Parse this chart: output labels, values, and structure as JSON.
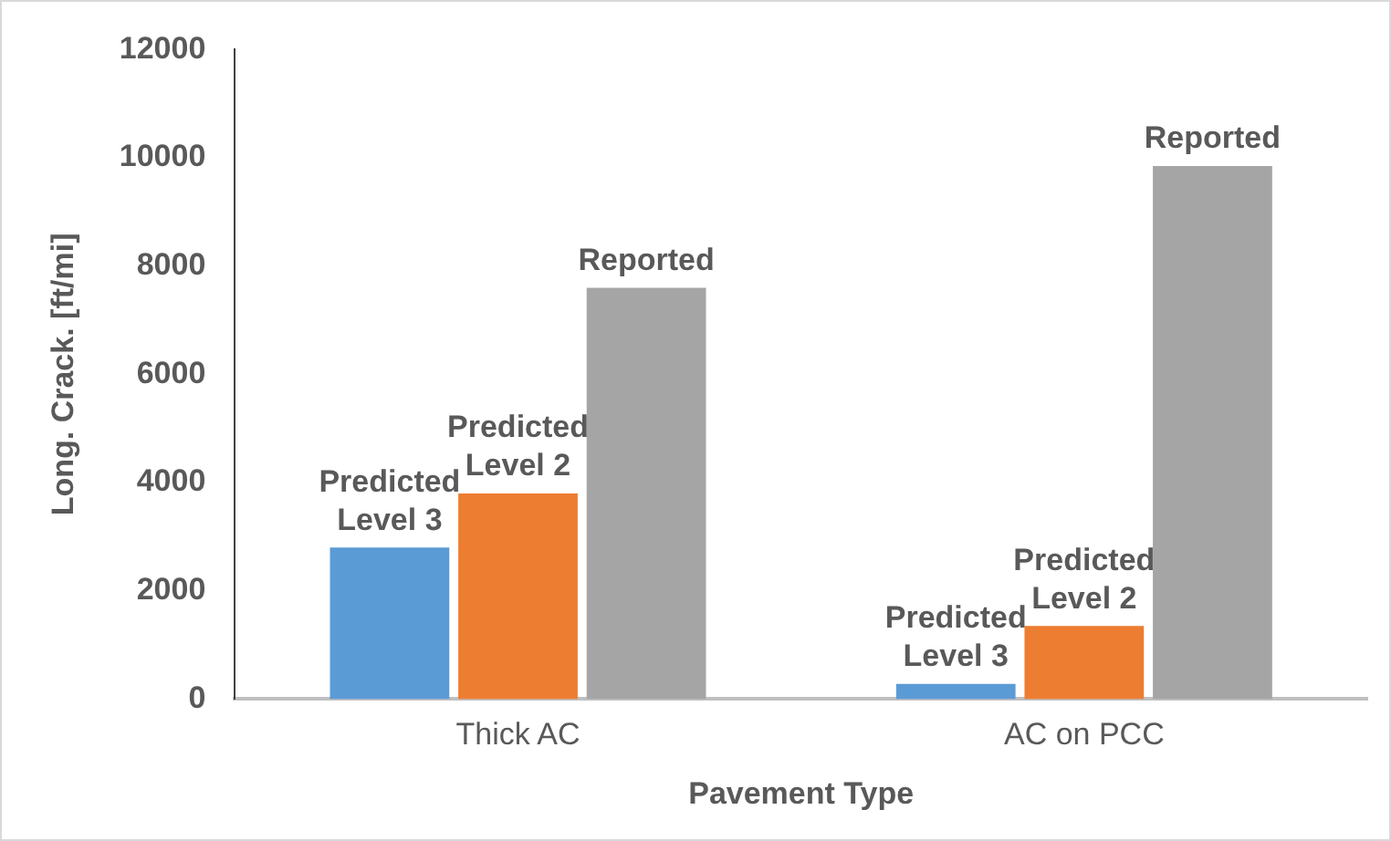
{
  "chart_data": {
    "type": "bar",
    "xlabel": "Pavement Type",
    "ylabel": "Long. Crack. [ft/mi]",
    "categories": [
      "Thick AC",
      "AC on PCC"
    ],
    "series": [
      {
        "name": "Predicted\nLevel 3",
        "color": "#5b9bd5",
        "values": [
          2800,
          280
        ]
      },
      {
        "name": "Predicted\nLevel 2",
        "color": "#ed7d31",
        "values": [
          3800,
          1350
        ]
      },
      {
        "name": "Reported",
        "color": "#a5a5a5",
        "values": [
          7600,
          9850
        ]
      }
    ],
    "ylim": [
      0,
      12000
    ],
    "yticks": [
      0,
      2000,
      4000,
      6000,
      8000,
      10000,
      12000
    ],
    "grid": false,
    "legend": false
  }
}
